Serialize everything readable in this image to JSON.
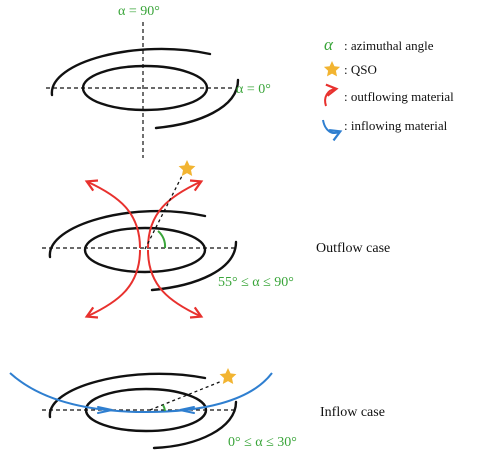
{
  "labels": {
    "alpha_90": "α = 90°",
    "alpha_0": "α = 0°",
    "outflow_range": "55° ≤ α ≤ 90°",
    "inflow_range": "0° ≤ α ≤ 30°",
    "outflow_case": "Outflow case",
    "inflow_case": "Inflow case"
  },
  "legend": {
    "alpha_symbol": "α",
    "alpha_text": ": azimuthal angle",
    "qso_text": ": QSO",
    "outflow_text": ": outflowing material",
    "inflow_text": ": inflowing material"
  },
  "colors": {
    "green": "#3aa53a",
    "red": "#e8312e",
    "blue": "#2f7fd0",
    "star": "#f2b431",
    "ink": "#111111"
  }
}
